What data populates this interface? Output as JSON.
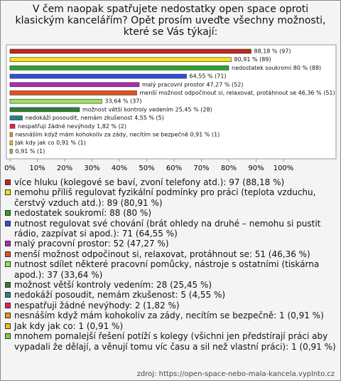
{
  "chart_data": {
    "type": "bar",
    "orientation": "horizontal",
    "title": "V čem naopak spatřujete nedostatky open space oproti klasickým kancelářím? Opět prosím uveďte všechny možnosti, které se Vás týkají:",
    "categories": [
      "více hluku (kolegové se baví, zvoní telefony atd.): 97 (88,18 %)",
      "nemohu příliš regulovat fyzikální podmínky pro práci (teplota vzduchu, čerstvý vzduch atd.): 89 (80,91 %)",
      "nedostatek soukromí: 88 (80 %)",
      "nutnost regulovat své chování (brát ohledy na druhé – nemohu si pustit rádio, zazpívat si apod.): 71 (64,55 %)",
      "malý pracovní prostor: 52 (47,27 %)",
      "menší možnost odpočinout si, relaxovat, protáhnout se: 51 (46,36 %)",
      "nutnost sdílet některé pracovní pomůcky, nástroje s ostatními (tiskárna apod.): 37 (33,64 %)",
      "možnost větší kontroly vedením: 28 (25,45 %)",
      "nedokáží posoudit, nemám zkušenost: 5 (4,55 %)",
      "nespatřuji žádné nevýhody: 2 (1,82 %)",
      "nesnáším když mám kohokoliv za zády, necítím se bezpečně: 1 (0,91 %)",
      "Jak kdy jak co: 1 (0,91 %)",
      "mnohem pomalejší řešení potíží s kolegy (všichni jen předstírají práci aby vypadali že dělají, a věnují tomu víc času a sil než vlastní práci): 1 (0,91 %)"
    ],
    "values": [
      88.18,
      80.91,
      80,
      64.55,
      47.27,
      46.36,
      33.64,
      25.45,
      4.55,
      1.82,
      0.91,
      0.91,
      0.91
    ],
    "value_labels": [
      "88,18 % (97)",
      "80,91 % (89)",
      "nedostatek soukromí 80 % (88)",
      "64,55 % (71)",
      "malý pracovní prostor 47,27 % (52)",
      "menší možnost odpočinout si, relaxovat, protáhnout se 46,36 % (51)",
      "33,64 % (37)",
      "možnost větší kontroly vedením 25,45 % (28)",
      "nedokáží posoudit, nemám zkušenost 4,55 % (5)",
      "nespatřuji žádné nevýhody 1,82 % (2)",
      "nesnáším když mám kohokoliv za zády, necítím se bezpečně 0,91 % (1)",
      "Jak kdy jak co 0,91 % (1)",
      "0,91 % (1)"
    ],
    "colors": [
      "#c0281e",
      "#f2e21c",
      "#2ea12e",
      "#2f4fd8",
      "#b02ab0",
      "#e2501e",
      "#9be060",
      "#2e7d3a",
      "#1f8585",
      "#e0205a",
      "#f0901e",
      "#f0c020",
      "#80d040"
    ],
    "xlim": [
      0,
      100
    ],
    "xticks": [
      {
        "value": 0,
        "label": "0%"
      },
      {
        "value": 10,
        "label": "10%"
      },
      {
        "value": 20,
        "label": "20%"
      },
      {
        "value": 30,
        "label": "30%"
      },
      {
        "value": 40,
        "label": "40%"
      },
      {
        "value": 50,
        "label": "50%"
      },
      {
        "value": 60,
        "label": "60%"
      },
      {
        "value": 70,
        "label": "70%"
      },
      {
        "value": 80,
        "label": "80%"
      },
      {
        "value": 90,
        "label": "90%"
      },
      {
        "value": 100,
        "label": "100%"
      }
    ],
    "source": "zdroj: https://open-space-nebo-mala-kancela.vyplnto.cz"
  }
}
